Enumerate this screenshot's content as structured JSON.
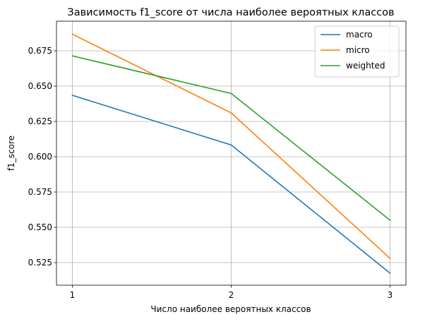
{
  "chart_data": {
    "type": "line",
    "title": "Зависимость f1_score от числа наиболее вероятных классов",
    "xlabel": "Число наиболее вероятных классов",
    "ylabel": "f1_score",
    "x": [
      1,
      2,
      3
    ],
    "xticks": [
      "1",
      "2",
      "3"
    ],
    "yticks": [
      0.525,
      0.55,
      0.575,
      0.6,
      0.625,
      0.65,
      0.675
    ],
    "ytick_labels": [
      "0.525",
      "0.550",
      "0.575",
      "0.600",
      "0.625",
      "0.650",
      "0.675"
    ],
    "xlim": [
      0.9,
      3.1
    ],
    "ylim": [
      0.509,
      0.696
    ],
    "grid": true,
    "legend_position": "top-right",
    "series": [
      {
        "name": "macro",
        "color": "#1f77b4",
        "values": [
          0.6435,
          0.6083,
          0.5175
        ]
      },
      {
        "name": "micro",
        "color": "#ff7f0e",
        "values": [
          0.6868,
          0.631,
          0.528
        ]
      },
      {
        "name": "weighted",
        "color": "#2ca02c",
        "values": [
          0.6714,
          0.6448,
          0.555
        ]
      }
    ]
  }
}
